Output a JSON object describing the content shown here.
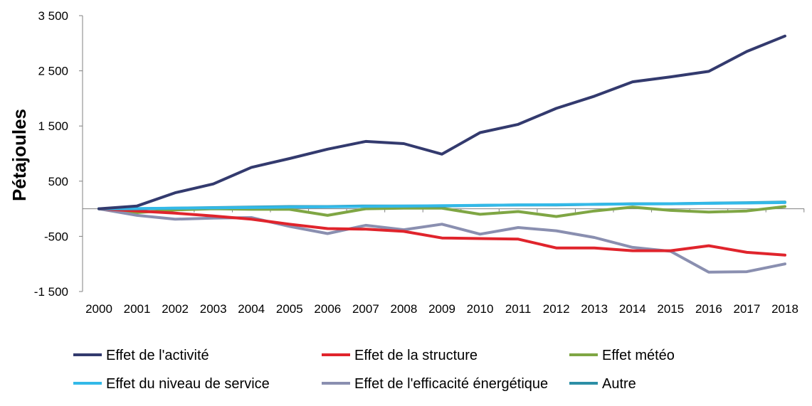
{
  "chart_data": {
    "type": "line",
    "title": "",
    "xlabel": "",
    "ylabel": "Pétajoules",
    "ylim": [
      -1500,
      3500
    ],
    "yticks": [
      3500,
      2500,
      1500,
      500,
      -500,
      -1500
    ],
    "ytick_labels": [
      "3 500",
      "2 500",
      "1 500",
      "500",
      "-500",
      "-1 500"
    ],
    "grid": false,
    "legend_position": "bottom",
    "x": [
      "2000",
      "2001",
      "2002",
      "2003",
      "2004",
      "2005",
      "2006",
      "2007",
      "2008",
      "2009",
      "2010",
      "2011",
      "2012",
      "2013",
      "2014",
      "2015",
      "2016",
      "2017",
      "2018"
    ],
    "series": [
      {
        "name": "Effet de l'activité",
        "color": "#333a6e",
        "values": [
          0,
          50,
          290,
          450,
          750,
          910,
          1080,
          1220,
          1180,
          990,
          1380,
          1530,
          1820,
          2040,
          2300,
          2390,
          2490,
          2850,
          3130
        ]
      },
      {
        "name": "Effet de la structure",
        "color": "#e0242c",
        "values": [
          0,
          -40,
          -80,
          -130,
          -190,
          -280,
          -360,
          -370,
          -410,
          -530,
          -540,
          -550,
          -710,
          -710,
          -760,
          -760,
          -670,
          -790,
          -840
        ]
      },
      {
        "name": "Effet météo",
        "color": "#7fa644",
        "values": [
          0,
          -70,
          -20,
          0,
          -10,
          -10,
          -120,
          0,
          10,
          10,
          -100,
          -50,
          -140,
          -40,
          30,
          -30,
          -60,
          -40,
          40
        ]
      },
      {
        "name": "Effet du niveau de service",
        "color": "#33b9e8",
        "values": [
          0,
          5,
          10,
          15,
          22,
          30,
          35,
          42,
          48,
          55,
          62,
          68,
          74,
          80,
          86,
          92,
          98,
          104,
          112
        ]
      },
      {
        "name": "Effet de l'efficacité énergétique",
        "color": "#8a8fb0",
        "values": [
          0,
          -120,
          -190,
          -170,
          -160,
          -320,
          -450,
          -300,
          -380,
          -280,
          -460,
          -340,
          -400,
          -520,
          -700,
          -770,
          -1150,
          -1140,
          -1000
        ]
      },
      {
        "name": "Autre",
        "color": "#2d8fa6",
        "values": [
          0,
          0,
          10,
          20,
          30,
          40,
          40,
          50,
          50,
          50,
          60,
          70,
          70,
          80,
          90,
          90,
          100,
          110,
          120
        ]
      }
    ]
  }
}
